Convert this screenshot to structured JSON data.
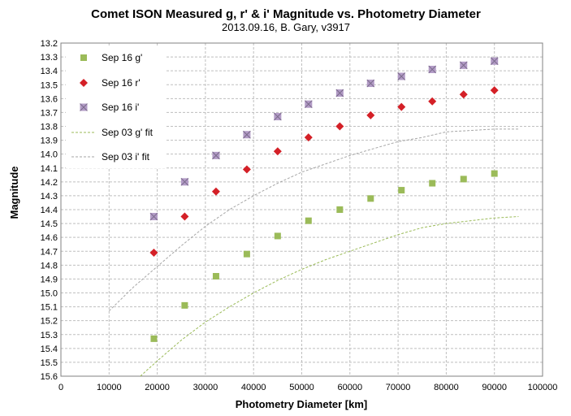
{
  "chart_data": {
    "type": "scatter",
    "title": "Comet ISON Measured g, r' & i' Magnitude vs. Photometry Diameter",
    "subtitle": "2013.09.16,  B. Gary, v3917",
    "xlabel": "Photometry Diameter  [km]",
    "ylabel": "Magnitude",
    "xlim": [
      0,
      100000
    ],
    "ylim": [
      13.2,
      15.6
    ],
    "y_reversed": true,
    "x_ticks": [
      "0",
      "10000",
      "20000",
      "30000",
      "40000",
      "50000",
      "60000",
      "70000",
      "80000",
      "90000",
      "100000"
    ],
    "y_ticks": [
      "13.2",
      "13.3",
      "13.4",
      "13.5",
      "13.6",
      "13.7",
      "13.8",
      "13.9",
      "14.0",
      "14.1",
      "14.2",
      "14.3",
      "14.4",
      "14.5",
      "14.6",
      "14.7",
      "14.8",
      "14.9",
      "15.0",
      "15.1",
      "15.2",
      "15.3",
      "15.4",
      "15.5",
      "15.6"
    ],
    "grid": true,
    "legend_position": "top-left",
    "series": [
      {
        "name": "Sep 16 g'",
        "kind": "marker",
        "marker": "square",
        "color": "#9bbb59",
        "x": [
          19300,
          25700,
          32200,
          38600,
          45000,
          51400,
          57900,
          64300,
          70700,
          77100,
          83600,
          90000
        ],
        "y": [
          15.33,
          15.09,
          14.88,
          14.72,
          14.59,
          14.48,
          14.4,
          14.32,
          14.26,
          14.21,
          14.18,
          14.14
        ]
      },
      {
        "name": "Sep 16 r'",
        "kind": "marker",
        "marker": "diamond",
        "color": "#d42027",
        "x": [
          19300,
          25700,
          32200,
          38600,
          45000,
          51400,
          57900,
          64300,
          70700,
          77100,
          83600,
          90000
        ],
        "y": [
          14.71,
          14.45,
          14.27,
          14.11,
          13.98,
          13.88,
          13.8,
          13.72,
          13.66,
          13.62,
          13.57,
          13.54
        ]
      },
      {
        "name": "Sep 16 i'",
        "kind": "marker",
        "marker": "square-x",
        "color": "#b29bc6",
        "x": [
          19300,
          25700,
          32200,
          38600,
          45000,
          51400,
          57900,
          64300,
          70700,
          77100,
          83600,
          90000
        ],
        "y": [
          14.45,
          14.2,
          14.01,
          13.86,
          13.73,
          13.64,
          13.56,
          13.49,
          13.44,
          13.39,
          13.36,
          13.33
        ]
      },
      {
        "name": "Sep 03 g' fit",
        "kind": "line",
        "dash": true,
        "color": "#9bbb59",
        "x": [
          16500,
          20000,
          25000,
          30000,
          35000,
          40000,
          45000,
          50000,
          55000,
          60000,
          65000,
          70000,
          75000,
          80000,
          85000,
          90000,
          95000
        ],
        "y": [
          15.6,
          15.49,
          15.34,
          15.21,
          15.1,
          15.0,
          14.91,
          14.83,
          14.76,
          14.7,
          14.64,
          14.58,
          14.53,
          14.5,
          14.48,
          14.46,
          14.45
        ]
      },
      {
        "name": "Sep 03 i' fit",
        "kind": "line",
        "dash": true,
        "color": "#a6a6a6",
        "x": [
          10000,
          15000,
          20000,
          25000,
          30000,
          35000,
          40000,
          45000,
          50000,
          55000,
          60000,
          65000,
          70000,
          75000,
          80000,
          85000,
          90000,
          95000
        ],
        "y": [
          15.13,
          14.96,
          14.81,
          14.66,
          14.52,
          14.4,
          14.3,
          14.21,
          14.13,
          14.07,
          14.01,
          13.96,
          13.91,
          13.88,
          13.84,
          13.83,
          13.82,
          13.82
        ]
      }
    ]
  }
}
